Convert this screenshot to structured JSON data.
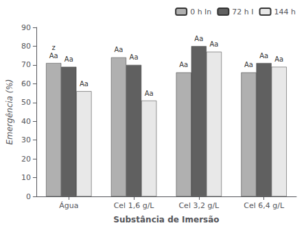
{
  "chart_data": {
    "type": "bar",
    "categories": [
      "Água",
      "Cel 1,6 g/L",
      "Cel 3,2 g/L",
      "Cel 6,4 g/L"
    ],
    "series": [
      {
        "name": "0 h In",
        "color": "#b0b0b0",
        "values": [
          71,
          74,
          66,
          66
        ]
      },
      {
        "name": "72 h I",
        "color": "#606060",
        "values": [
          69,
          70,
          80,
          71
        ]
      },
      {
        "name": "144 h",
        "color": "#e8e8e8",
        "values": [
          56,
          51,
          77,
          69
        ]
      }
    ],
    "xlabel": "Substância de Imersão",
    "ylabel": "Emergência (%)",
    "ylim": [
      0,
      90
    ],
    "yticks": [
      0,
      10,
      20,
      30,
      40,
      50,
      60,
      70,
      80,
      90
    ],
    "grid": false,
    "legend": "upper right",
    "annotations": [
      {
        "text": "z",
        "category": "Água",
        "series": "0 h In"
      },
      {
        "text": "Aa",
        "category": "Água",
        "series": "0 h In"
      },
      {
        "text": "Aa",
        "category": "Água",
        "series": "72 h I"
      },
      {
        "text": "Aa",
        "category": "Água",
        "series": "144 h"
      },
      {
        "text": "Aa",
        "category": "Cel 1,6 g/L",
        "series": "0 h In"
      },
      {
        "text": "Aa",
        "category": "Cel 1,6 g/L",
        "series": "72 h I"
      },
      {
        "text": "Aa",
        "category": "Cel 1,6 g/L",
        "series": "144 h"
      },
      {
        "text": "Aa",
        "category": "Cel 3,2 g/L",
        "series": "0 h In"
      },
      {
        "text": "Aa",
        "category": "Cel 3,2 g/L",
        "series": "72 h I"
      },
      {
        "text": "Aa",
        "category": "Cel 3,2 g/L",
        "series": "144 h"
      },
      {
        "text": "Aa",
        "category": "Cel 6,4 g/L",
        "series": "0 h In"
      },
      {
        "text": "Aa",
        "category": "Cel 6,4 g/L",
        "series": "72 h I"
      },
      {
        "text": "Aa",
        "category": "Cel 6,4 g/L",
        "series": "144 h"
      }
    ]
  }
}
